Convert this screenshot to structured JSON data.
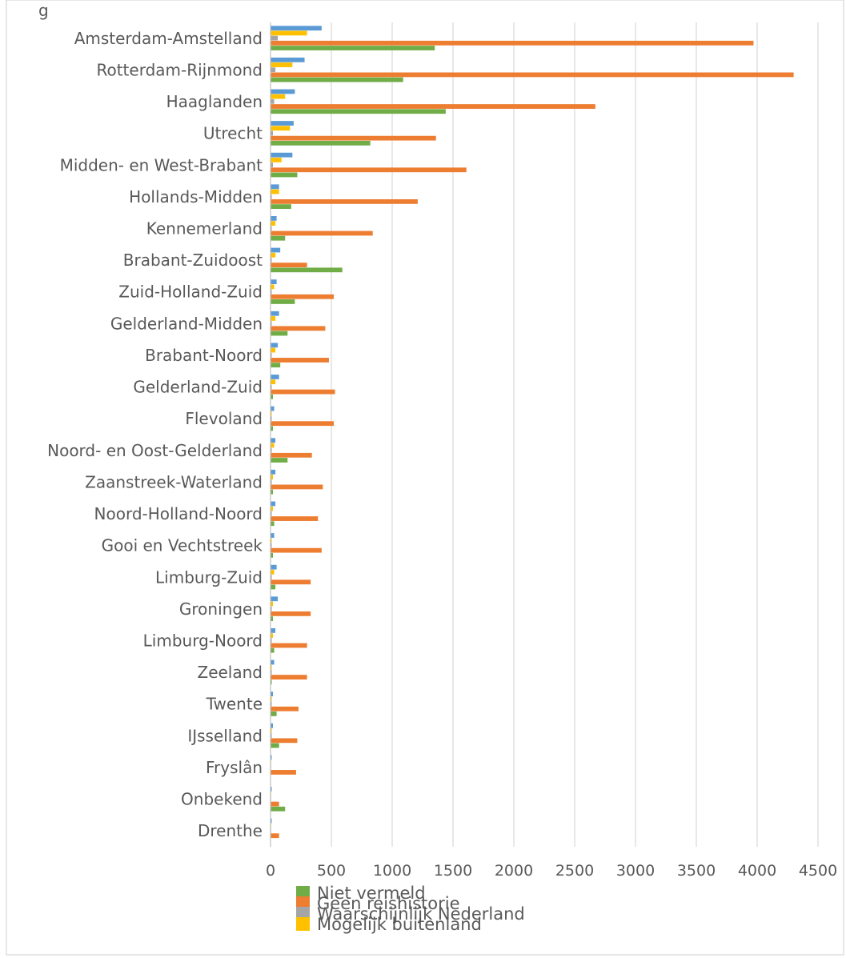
{
  "header": {
    "partial_title": "g"
  },
  "chart_data": {
    "type": "bar",
    "orientation": "horizontal",
    "categories": [
      "Amsterdam-Amstelland",
      "Rotterdam-Rijnmond",
      "Haaglanden",
      "Utrecht",
      "Midden- en West-Brabant",
      "Hollands-Midden",
      "Kennemerland",
      "Brabant-Zuidoost",
      "Zuid-Holland-Zuid",
      "Gelderland-Midden",
      "Brabant-Noord",
      "Gelderland-Zuid",
      "Flevoland",
      "Noord- en Oost-Gelderland",
      "Zaanstreek-Waterland",
      "Noord-Holland-Noord",
      "Gooi en Vechtstreek",
      "Limburg-Zuid",
      "Groningen",
      "Limburg-Noord",
      "Zeeland",
      "Twente",
      "IJsselland",
      "Fryslân",
      "Onbekend",
      "Drenthe"
    ],
    "series": [
      {
        "name": "Niet vermeld",
        "color": "#70ad47",
        "values": [
          1350,
          1090,
          1440,
          820,
          220,
          170,
          120,
          590,
          200,
          140,
          80,
          20,
          20,
          140,
          20,
          30,
          20,
          40,
          20,
          30,
          10,
          50,
          70,
          0,
          120,
          0
        ]
      },
      {
        "name": "Geen reishistorie",
        "color": "#ed7d31",
        "values": [
          3970,
          4300,
          2670,
          1360,
          1610,
          1210,
          840,
          300,
          520,
          450,
          480,
          530,
          520,
          340,
          430,
          390,
          420,
          330,
          330,
          300,
          300,
          230,
          220,
          210,
          70,
          70
        ]
      },
      {
        "name": "Waarschijnlijk Nederland",
        "color": "#a5a5a5",
        "values": [
          60,
          40,
          30,
          20,
          20,
          10,
          10,
          10,
          10,
          10,
          10,
          10,
          10,
          10,
          10,
          10,
          10,
          10,
          10,
          10,
          10,
          10,
          10,
          5,
          5,
          5
        ]
      },
      {
        "name": "Mogelijk buitenland",
        "color": "#ffc000",
        "values": [
          300,
          180,
          120,
          160,
          90,
          70,
          40,
          40,
          30,
          40,
          40,
          40,
          10,
          30,
          20,
          20,
          10,
          30,
          20,
          20,
          10,
          10,
          10,
          5,
          5,
          5
        ]
      },
      {
        "name": "",
        "color": "#5b9bd5",
        "values": [
          420,
          280,
          200,
          190,
          180,
          70,
          50,
          80,
          50,
          70,
          60,
          70,
          30,
          40,
          40,
          40,
          30,
          50,
          60,
          40,
          30,
          20,
          20,
          10,
          10,
          10
        ]
      }
    ],
    "xlim": [
      0,
      4500
    ],
    "xticks": [
      "0",
      "500",
      "1000",
      "1500",
      "2000",
      "2500",
      "3000",
      "3500",
      "4000",
      "4500"
    ],
    "grid": true,
    "legend": {
      "placement": "bottom",
      "entries": [
        "Niet vermeld",
        "Geen reishistorie",
        "Waarschijnlijk Nederland",
        "Mogelijk buitenland"
      ]
    }
  }
}
